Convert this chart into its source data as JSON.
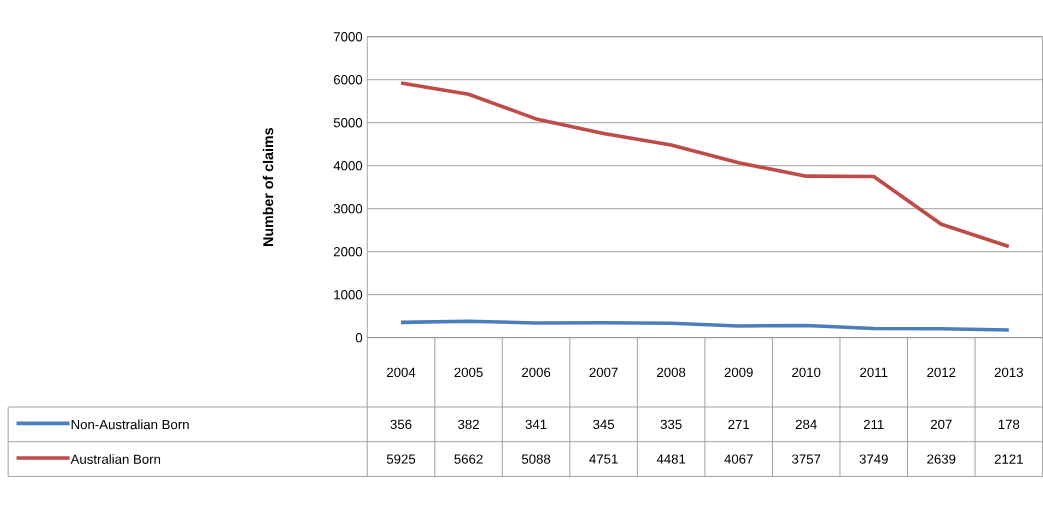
{
  "chart_data": {
    "type": "line",
    "ylabel": "Number of claims",
    "categories": [
      "2004",
      "2005",
      "2006",
      "2007",
      "2008",
      "2009",
      "2010",
      "2011",
      "2012",
      "2013"
    ],
    "series": [
      {
        "name": "Non-Australian Born",
        "color": "#4a7ebb",
        "values": [
          356,
          382,
          341,
          345,
          335,
          271,
          284,
          211,
          207,
          178
        ]
      },
      {
        "name": "Australian Born",
        "color": "#be4b48",
        "values": [
          5925,
          5662,
          5088,
          4751,
          4481,
          4067,
          3757,
          3749,
          2639,
          2121
        ]
      }
    ],
    "ylim": [
      0,
      7000
    ],
    "yticks": [
      0,
      1000,
      2000,
      3000,
      4000,
      5000,
      6000,
      7000
    ],
    "grid": "y",
    "legend": "bottom",
    "data_labels": true,
    "marker": "none",
    "line_style": "solid"
  }
}
